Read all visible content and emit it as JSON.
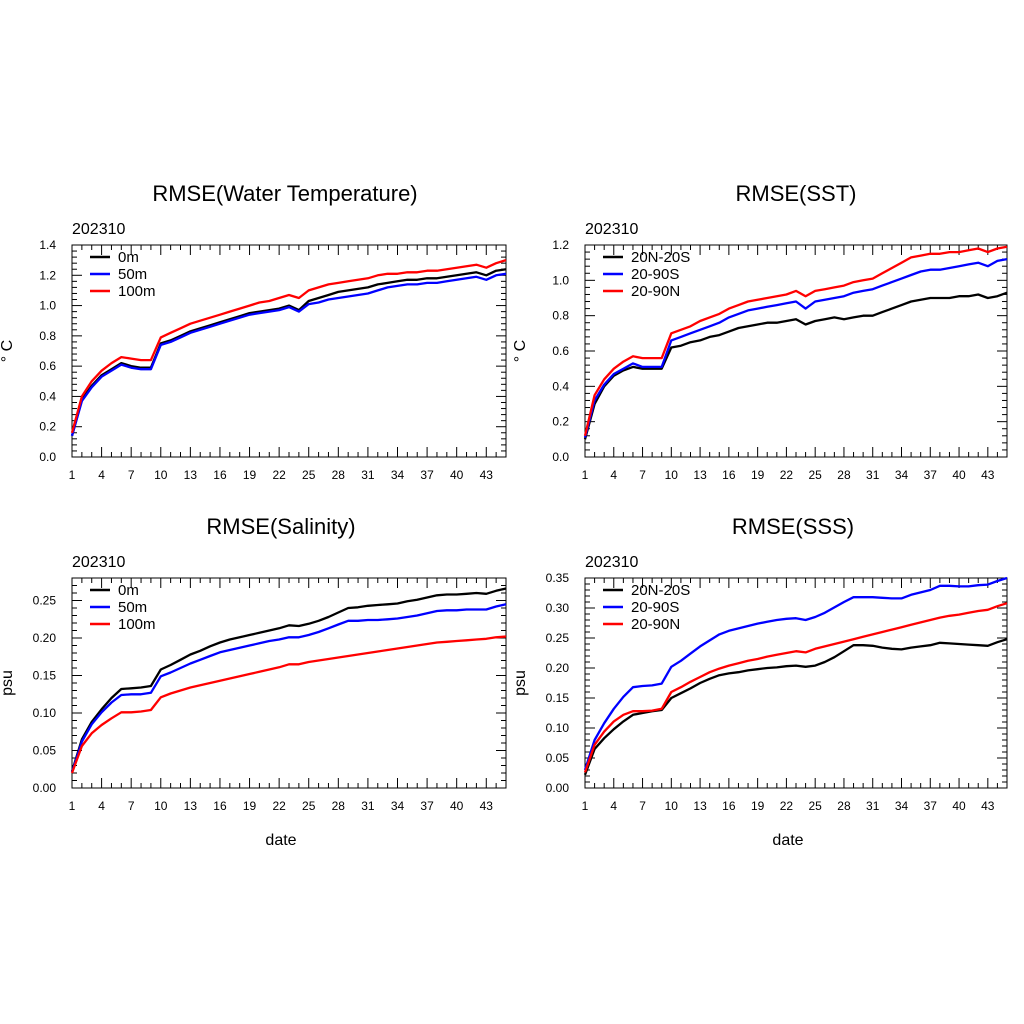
{
  "chart_data": [
    {
      "type": "line",
      "title": "RMSE(Water Temperature)",
      "subtitle": "202310",
      "xlabel": "",
      "ylabel": "° C",
      "xlim": [
        1,
        45
      ],
      "ylim": [
        0,
        1.4
      ],
      "x_ticks": [
        1,
        4,
        7,
        10,
        13,
        16,
        19,
        22,
        25,
        28,
        31,
        34,
        37,
        40,
        43
      ],
      "y_ticks": [
        "0.0",
        "0.2",
        "0.4",
        "0.6",
        "0.8",
        "1.0",
        "1.2",
        "1.4"
      ],
      "legend_position": "top-left",
      "series": [
        {
          "name": "0m",
          "color": "#000000",
          "values": [
            0.14,
            0.38,
            0.47,
            0.54,
            0.58,
            0.62,
            0.6,
            0.59,
            0.59,
            0.75,
            0.77,
            0.8,
            0.83,
            0.85,
            0.87,
            0.89,
            0.91,
            0.93,
            0.95,
            0.96,
            0.97,
            0.98,
            1.0,
            0.97,
            1.03,
            1.05,
            1.07,
            1.09,
            1.1,
            1.11,
            1.12,
            1.14,
            1.15,
            1.16,
            1.17,
            1.17,
            1.18,
            1.18,
            1.19,
            1.2,
            1.21,
            1.22,
            1.2,
            1.23,
            1.24
          ]
        },
        {
          "name": "50m",
          "color": "#0000ff",
          "values": [
            0.14,
            0.37,
            0.46,
            0.53,
            0.57,
            0.61,
            0.59,
            0.58,
            0.58,
            0.74,
            0.76,
            0.79,
            0.82,
            0.84,
            0.86,
            0.88,
            0.9,
            0.92,
            0.94,
            0.95,
            0.96,
            0.97,
            0.99,
            0.96,
            1.01,
            1.02,
            1.04,
            1.05,
            1.06,
            1.07,
            1.08,
            1.1,
            1.12,
            1.13,
            1.14,
            1.14,
            1.15,
            1.15,
            1.16,
            1.17,
            1.18,
            1.19,
            1.17,
            1.2,
            1.21
          ]
        },
        {
          "name": "100m",
          "color": "#ff0000",
          "values": [
            0.16,
            0.4,
            0.5,
            0.57,
            0.62,
            0.66,
            0.65,
            0.64,
            0.64,
            0.79,
            0.82,
            0.85,
            0.88,
            0.9,
            0.92,
            0.94,
            0.96,
            0.98,
            1.0,
            1.02,
            1.03,
            1.05,
            1.07,
            1.05,
            1.1,
            1.12,
            1.14,
            1.15,
            1.16,
            1.17,
            1.18,
            1.2,
            1.21,
            1.21,
            1.22,
            1.22,
            1.23,
            1.23,
            1.24,
            1.25,
            1.26,
            1.27,
            1.25,
            1.28,
            1.3
          ]
        }
      ]
    },
    {
      "type": "line",
      "title": "RMSE(SST)",
      "subtitle": "202310",
      "xlabel": "",
      "ylabel": "° C",
      "xlim": [
        1,
        45
      ],
      "ylim": [
        0,
        1.2
      ],
      "x_ticks": [
        1,
        4,
        7,
        10,
        13,
        16,
        19,
        22,
        25,
        28,
        31,
        34,
        37,
        40,
        43
      ],
      "y_ticks": [
        "0.0",
        "0.2",
        "0.4",
        "0.6",
        "0.8",
        "1.0",
        "1.2"
      ],
      "legend_position": "top-left",
      "series": [
        {
          "name": "20N-20S",
          "color": "#000000",
          "values": [
            0.1,
            0.3,
            0.4,
            0.46,
            0.49,
            0.51,
            0.5,
            0.5,
            0.5,
            0.62,
            0.63,
            0.65,
            0.66,
            0.68,
            0.69,
            0.71,
            0.73,
            0.74,
            0.75,
            0.76,
            0.76,
            0.77,
            0.78,
            0.75,
            0.77,
            0.78,
            0.79,
            0.78,
            0.79,
            0.8,
            0.8,
            0.82,
            0.84,
            0.86,
            0.88,
            0.89,
            0.9,
            0.9,
            0.9,
            0.91,
            0.91,
            0.92,
            0.9,
            0.91,
            0.93
          ]
        },
        {
          "name": "20-90S",
          "color": "#0000ff",
          "values": [
            0.11,
            0.32,
            0.41,
            0.47,
            0.5,
            0.53,
            0.51,
            0.51,
            0.51,
            0.66,
            0.68,
            0.7,
            0.72,
            0.74,
            0.76,
            0.79,
            0.81,
            0.83,
            0.84,
            0.85,
            0.86,
            0.87,
            0.88,
            0.84,
            0.88,
            0.89,
            0.9,
            0.91,
            0.93,
            0.94,
            0.95,
            0.97,
            0.99,
            1.01,
            1.03,
            1.05,
            1.06,
            1.06,
            1.07,
            1.08,
            1.09,
            1.1,
            1.08,
            1.11,
            1.12
          ]
        },
        {
          "name": "20-90N",
          "color": "#ff0000",
          "values": [
            0.12,
            0.35,
            0.44,
            0.5,
            0.54,
            0.57,
            0.56,
            0.56,
            0.56,
            0.7,
            0.72,
            0.74,
            0.77,
            0.79,
            0.81,
            0.84,
            0.86,
            0.88,
            0.89,
            0.9,
            0.91,
            0.92,
            0.94,
            0.91,
            0.94,
            0.95,
            0.96,
            0.97,
            0.99,
            1.0,
            1.01,
            1.04,
            1.07,
            1.1,
            1.13,
            1.14,
            1.15,
            1.15,
            1.16,
            1.16,
            1.17,
            1.18,
            1.16,
            1.18,
            1.19
          ]
        }
      ]
    },
    {
      "type": "line",
      "title": "RMSE(Salinity)",
      "subtitle": "202310",
      "xlabel": "date",
      "ylabel": "psu",
      "xlim": [
        1,
        45
      ],
      "ylim": [
        0,
        0.28
      ],
      "x_ticks": [
        1,
        4,
        7,
        10,
        13,
        16,
        19,
        22,
        25,
        28,
        31,
        34,
        37,
        40,
        43
      ],
      "y_ticks": [
        "0.00",
        "0.05",
        "0.10",
        "0.15",
        "0.20",
        "0.25"
      ],
      "legend_position": "top-left",
      "series": [
        {
          "name": "0m",
          "color": "#000000",
          "values": [
            0.022,
            0.065,
            0.088,
            0.105,
            0.12,
            0.132,
            0.133,
            0.134,
            0.136,
            0.158,
            0.164,
            0.171,
            0.178,
            0.183,
            0.189,
            0.194,
            0.198,
            0.201,
            0.204,
            0.207,
            0.21,
            0.213,
            0.217,
            0.216,
            0.219,
            0.223,
            0.228,
            0.234,
            0.24,
            0.241,
            0.243,
            0.244,
            0.245,
            0.246,
            0.249,
            0.251,
            0.254,
            0.257,
            0.258,
            0.258,
            0.259,
            0.26,
            0.259,
            0.263,
            0.266
          ]
        },
        {
          "name": "50m",
          "color": "#0000ff",
          "values": [
            0.021,
            0.062,
            0.085,
            0.101,
            0.114,
            0.124,
            0.125,
            0.125,
            0.127,
            0.149,
            0.154,
            0.16,
            0.166,
            0.171,
            0.176,
            0.181,
            0.184,
            0.187,
            0.19,
            0.193,
            0.196,
            0.198,
            0.201,
            0.201,
            0.204,
            0.208,
            0.213,
            0.218,
            0.223,
            0.223,
            0.224,
            0.224,
            0.225,
            0.226,
            0.228,
            0.23,
            0.233,
            0.236,
            0.237,
            0.237,
            0.238,
            0.238,
            0.238,
            0.242,
            0.245
          ]
        },
        {
          "name": "100m",
          "color": "#ff0000",
          "values": [
            0.02,
            0.056,
            0.073,
            0.084,
            0.093,
            0.101,
            0.101,
            0.102,
            0.104,
            0.121,
            0.126,
            0.13,
            0.134,
            0.137,
            0.14,
            0.143,
            0.146,
            0.149,
            0.152,
            0.155,
            0.158,
            0.161,
            0.165,
            0.165,
            0.168,
            0.17,
            0.172,
            0.174,
            0.176,
            0.178,
            0.18,
            0.182,
            0.184,
            0.186,
            0.188,
            0.19,
            0.192,
            0.194,
            0.195,
            0.196,
            0.197,
            0.198,
            0.199,
            0.201,
            0.202
          ]
        }
      ]
    },
    {
      "type": "line",
      "title": "RMSE(SSS)",
      "subtitle": "202310",
      "xlabel": "date",
      "ylabel": "psu",
      "xlim": [
        1,
        45
      ],
      "ylim": [
        0,
        0.35
      ],
      "x_ticks": [
        1,
        4,
        7,
        10,
        13,
        16,
        19,
        22,
        25,
        28,
        31,
        34,
        37,
        40,
        43
      ],
      "y_ticks": [
        "0.00",
        "0.05",
        "0.10",
        "0.15",
        "0.20",
        "0.25",
        "0.30",
        "0.35"
      ],
      "legend_position": "top-left",
      "series": [
        {
          "name": "20N-20S",
          "color": "#000000",
          "values": [
            0.022,
            0.065,
            0.083,
            0.098,
            0.111,
            0.122,
            0.125,
            0.128,
            0.13,
            0.15,
            0.158,
            0.166,
            0.175,
            0.182,
            0.188,
            0.191,
            0.193,
            0.196,
            0.198,
            0.2,
            0.201,
            0.203,
            0.204,
            0.202,
            0.204,
            0.21,
            0.218,
            0.228,
            0.238,
            0.238,
            0.237,
            0.234,
            0.232,
            0.231,
            0.234,
            0.236,
            0.238,
            0.242,
            0.241,
            0.24,
            0.239,
            0.238,
            0.237,
            0.243,
            0.248
          ]
        },
        {
          "name": "20-90S",
          "color": "#0000ff",
          "values": [
            0.03,
            0.08,
            0.108,
            0.132,
            0.152,
            0.168,
            0.17,
            0.171,
            0.174,
            0.202,
            0.212,
            0.224,
            0.236,
            0.246,
            0.256,
            0.262,
            0.266,
            0.27,
            0.274,
            0.277,
            0.28,
            0.282,
            0.283,
            0.28,
            0.285,
            0.292,
            0.301,
            0.31,
            0.318,
            0.318,
            0.318,
            0.317,
            0.316,
            0.316,
            0.322,
            0.326,
            0.33,
            0.337,
            0.337,
            0.336,
            0.336,
            0.338,
            0.339,
            0.345,
            0.35
          ]
        },
        {
          "name": "20-90N",
          "color": "#ff0000",
          "values": [
            0.026,
            0.072,
            0.094,
            0.111,
            0.122,
            0.128,
            0.128,
            0.129,
            0.132,
            0.16,
            0.168,
            0.177,
            0.185,
            0.193,
            0.199,
            0.204,
            0.208,
            0.212,
            0.215,
            0.219,
            0.222,
            0.225,
            0.228,
            0.226,
            0.232,
            0.236,
            0.24,
            0.244,
            0.248,
            0.252,
            0.256,
            0.26,
            0.264,
            0.268,
            0.272,
            0.276,
            0.28,
            0.284,
            0.287,
            0.289,
            0.292,
            0.295,
            0.297,
            0.303,
            0.308
          ]
        }
      ]
    }
  ]
}
